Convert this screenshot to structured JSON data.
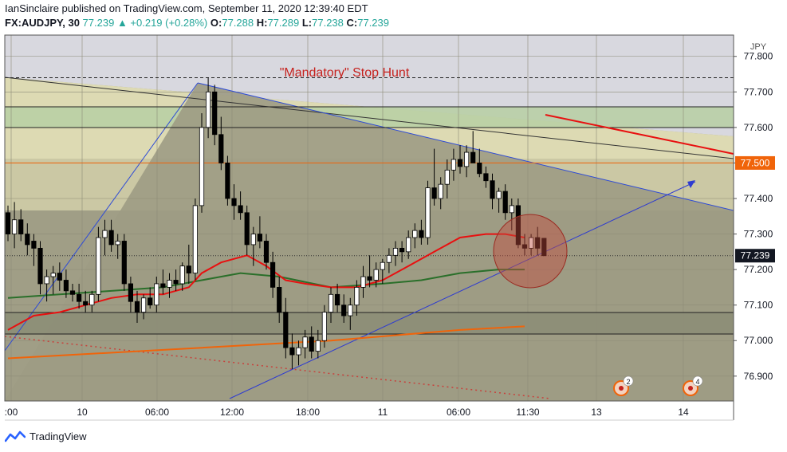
{
  "header": {
    "publisher_line": "IanSinclaire published on TradingView.com, September 11, 2020 12:39:40 EDT",
    "symbol": "FX:AUDJPY, 30",
    "last": "77.239",
    "change": "▲ +0.219 (+0.28%)",
    "o_label": "O:",
    "o": "77.288",
    "h_label": "H:",
    "h": "77.289",
    "l_label": "L:",
    "l": "77.238",
    "c_label": "C:",
    "c": "77.239"
  },
  "footer": {
    "brand": "TradingView"
  },
  "annotation": "\"Mandatory\" Stop Hunt",
  "markers": [
    "2",
    "4"
  ],
  "colors": {
    "background": "#a09e86",
    "up_candle": "#ffffff",
    "down_candle": "#000000",
    "ema_fast": "#e81010",
    "ema_mid": "#2a6f2a",
    "ema_slow": "#f0640a",
    "resistance_label": "#f0640a",
    "price_label": "#131722"
  },
  "chart_data": {
    "type": "candlestick",
    "currency": "JPY",
    "ylim": [
      76.83,
      77.86
    ],
    "y_ticks": [
      "77.800",
      "77.700",
      "77.600",
      "77.500",
      "77.400",
      "77.300",
      "77.200",
      "77.100",
      "77.000",
      "76.900"
    ],
    "x_ticks": [
      ":00",
      "10",
      "06:00",
      "12:00",
      "18:00",
      "11",
      "06:00",
      "11:30",
      "13",
      "14"
    ],
    "last_price_label": "77.239",
    "level_label": "77.500",
    "levels": {
      "dashed_top": 77.74,
      "level_77_5": 77.5,
      "last": 77.239
    },
    "candles": [
      [
        77.36,
        77.38,
        77.28,
        77.3
      ],
      [
        77.3,
        77.39,
        77.26,
        77.34
      ],
      [
        77.34,
        77.37,
        77.28,
        77.3
      ],
      [
        77.3,
        77.33,
        77.24,
        77.27
      ],
      [
        77.28,
        77.3,
        77.21,
        77.26
      ],
      [
        77.26,
        77.28,
        77.13,
        77.16
      ],
      [
        77.16,
        77.2,
        77.11,
        77.18
      ],
      [
        77.18,
        77.21,
        77.13,
        77.19
      ],
      [
        77.19,
        77.22,
        77.14,
        77.17
      ],
      [
        77.17,
        77.2,
        77.12,
        77.14
      ],
      [
        77.14,
        77.16,
        77.11,
        77.13
      ],
      [
        77.13,
        77.16,
        77.09,
        77.11
      ],
      [
        77.11,
        77.14,
        77.08,
        77.1
      ],
      [
        77.1,
        77.14,
        77.08,
        77.13
      ],
      [
        77.13,
        77.32,
        77.11,
        77.29
      ],
      [
        77.29,
        77.34,
        77.24,
        77.31
      ],
      [
        77.31,
        77.34,
        77.25,
        77.27
      ],
      [
        77.27,
        77.3,
        77.23,
        77.28
      ],
      [
        77.28,
        77.3,
        77.14,
        77.16
      ],
      [
        77.16,
        77.18,
        77.08,
        77.11
      ],
      [
        77.11,
        77.14,
        77.05,
        77.08
      ],
      [
        77.08,
        77.13,
        77.06,
        77.12
      ],
      [
        77.12,
        77.15,
        77.09,
        77.1
      ],
      [
        77.1,
        77.18,
        77.08,
        77.16
      ],
      [
        77.16,
        77.2,
        77.13,
        77.15
      ],
      [
        77.15,
        77.19,
        77.12,
        77.17
      ],
      [
        77.17,
        77.2,
        77.14,
        77.16
      ],
      [
        77.16,
        77.22,
        77.14,
        77.21
      ],
      [
        77.21,
        77.27,
        77.16,
        77.19
      ],
      [
        77.19,
        77.4,
        77.17,
        77.38
      ],
      [
        77.38,
        77.64,
        77.36,
        77.6
      ],
      [
        77.6,
        77.74,
        77.57,
        77.7
      ],
      [
        77.7,
        77.72,
        77.55,
        77.58
      ],
      [
        77.58,
        77.63,
        77.48,
        77.5
      ],
      [
        77.5,
        77.52,
        77.38,
        77.4
      ],
      [
        77.4,
        77.44,
        77.34,
        77.38
      ],
      [
        77.38,
        77.42,
        77.34,
        77.36
      ],
      [
        77.36,
        77.38,
        77.24,
        77.27
      ],
      [
        77.27,
        77.32,
        77.21,
        77.3
      ],
      [
        77.3,
        77.35,
        77.26,
        77.28
      ],
      [
        77.28,
        77.3,
        77.2,
        77.22
      ],
      [
        77.22,
        77.25,
        77.12,
        77.15
      ],
      [
        77.15,
        77.18,
        77.05,
        77.08
      ],
      [
        77.08,
        77.12,
        76.95,
        76.98
      ],
      [
        76.98,
        77.02,
        76.92,
        76.96
      ],
      [
        76.96,
        77.0,
        76.93,
        76.98
      ],
      [
        76.98,
        77.03,
        76.95,
        77.01
      ],
      [
        77.01,
        77.04,
        76.95,
        76.97
      ],
      [
        76.97,
        77.03,
        76.95,
        77.0
      ],
      [
        77.0,
        77.1,
        76.98,
        77.08
      ],
      [
        77.08,
        77.15,
        77.05,
        77.13
      ],
      [
        77.13,
        77.16,
        77.08,
        77.1
      ],
      [
        77.1,
        77.13,
        77.05,
        77.07
      ],
      [
        77.07,
        77.12,
        77.03,
        77.1
      ],
      [
        77.1,
        77.17,
        77.07,
        77.15
      ],
      [
        77.15,
        77.21,
        77.12,
        77.18
      ],
      [
        77.18,
        77.24,
        77.15,
        77.17
      ],
      [
        77.17,
        77.22,
        77.15,
        77.2
      ],
      [
        77.2,
        77.23,
        77.16,
        77.22
      ],
      [
        77.22,
        77.26,
        77.19,
        77.24
      ],
      [
        77.24,
        77.28,
        77.21,
        77.26
      ],
      [
        77.26,
        77.28,
        77.22,
        77.25
      ],
      [
        77.25,
        77.31,
        77.23,
        77.29
      ],
      [
        77.29,
        77.33,
        77.26,
        77.31
      ],
      [
        77.31,
        77.34,
        77.27,
        77.29
      ],
      [
        77.29,
        77.45,
        77.27,
        77.43
      ],
      [
        77.43,
        77.54,
        77.38,
        77.4
      ],
      [
        77.4,
        77.46,
        77.37,
        77.44
      ],
      [
        77.44,
        77.51,
        77.4,
        77.48
      ],
      [
        77.48,
        77.54,
        77.45,
        77.51
      ],
      [
        77.51,
        77.55,
        77.47,
        77.49
      ],
      [
        77.49,
        77.55,
        77.46,
        77.53
      ],
      [
        77.53,
        77.59,
        77.5,
        77.5
      ],
      [
        77.5,
        77.54,
        77.46,
        77.47
      ],
      [
        77.47,
        77.49,
        77.43,
        77.45
      ],
      [
        77.45,
        77.47,
        77.37,
        77.4
      ],
      [
        77.4,
        77.43,
        77.36,
        77.42
      ],
      [
        77.42,
        77.44,
        77.34,
        77.36
      ],
      [
        77.36,
        77.4,
        77.31,
        77.38
      ],
      [
        77.38,
        77.4,
        77.26,
        77.27
      ],
      [
        77.27,
        77.3,
        77.24,
        77.26
      ],
      [
        77.26,
        77.3,
        77.24,
        77.29
      ],
      [
        77.29,
        77.32,
        77.24,
        77.26
      ],
      [
        77.288,
        77.289,
        77.238,
        77.239
      ]
    ],
    "ema_fast": [
      [
        0,
        77.03
      ],
      [
        4,
        77.07
      ],
      [
        8,
        77.08
      ],
      [
        12,
        77.1
      ],
      [
        16,
        77.12
      ],
      [
        20,
        77.13
      ],
      [
        24,
        77.13
      ],
      [
        28,
        77.15
      ],
      [
        30,
        77.19
      ],
      [
        33,
        77.22
      ],
      [
        37,
        77.24
      ],
      [
        40,
        77.21
      ],
      [
        43,
        77.17
      ],
      [
        46,
        77.16
      ],
      [
        50,
        77.15
      ],
      [
        54,
        77.15
      ],
      [
        58,
        77.17
      ],
      [
        62,
        77.21
      ],
      [
        66,
        77.25
      ],
      [
        70,
        77.29
      ],
      [
        74,
        77.3
      ],
      [
        77,
        77.3
      ],
      [
        80,
        77.29
      ]
    ],
    "ema_mid": [
      [
        0,
        77.12
      ],
      [
        8,
        77.13
      ],
      [
        16,
        77.14
      ],
      [
        24,
        77.15
      ],
      [
        30,
        77.17
      ],
      [
        36,
        77.19
      ],
      [
        42,
        77.18
      ],
      [
        50,
        77.15
      ],
      [
        58,
        77.16
      ],
      [
        64,
        77.17
      ],
      [
        70,
        77.19
      ],
      [
        76,
        77.2
      ],
      [
        80,
        77.2
      ]
    ],
    "ema_slow": [
      [
        0,
        76.95
      ],
      [
        30,
        76.98
      ],
      [
        50,
        77.0
      ],
      [
        70,
        77.03
      ],
      [
        80,
        77.04
      ]
    ]
  }
}
